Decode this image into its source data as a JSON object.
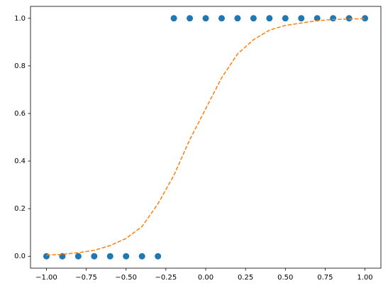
{
  "chart_data": {
    "type": "scatter",
    "x": [
      -1.0,
      -0.9,
      -0.8,
      -0.7,
      -0.6,
      -0.5,
      -0.4,
      -0.3,
      -0.2,
      -0.1,
      0.0,
      0.1,
      0.2,
      0.3,
      0.4,
      0.5,
      0.6,
      0.7,
      0.8,
      0.9,
      1.0
    ],
    "series": [
      {
        "type": "scatter",
        "color": "#1f77b4",
        "values": [
          0,
          0,
          0,
          0,
          0,
          0,
          0,
          0,
          1,
          1,
          1,
          1,
          1,
          1,
          1,
          1,
          1,
          1,
          1,
          1,
          1
        ]
      },
      {
        "type": "line",
        "dashed": true,
        "color": "#ff7f0e",
        "values": [
          0.005,
          0.008,
          0.015,
          0.025,
          0.045,
          0.075,
          0.125,
          0.22,
          0.34,
          0.49,
          0.62,
          0.75,
          0.85,
          0.91,
          0.95,
          0.97,
          0.98,
          0.99,
          0.995,
          0.997,
          0.998
        ]
      }
    ],
    "xlim": [
      -1.1,
      1.1
    ],
    "ylim": [
      -0.05,
      1.05
    ],
    "xticks": [
      {
        "value": -1.0,
        "label": "−1.00"
      },
      {
        "value": -0.75,
        "label": "−0.75"
      },
      {
        "value": -0.5,
        "label": "−0.50"
      },
      {
        "value": -0.25,
        "label": "−0.25"
      },
      {
        "value": 0,
        "label": "0.00"
      },
      {
        "value": 0.25,
        "label": "0.25"
      },
      {
        "value": 0.5,
        "label": "0.50"
      },
      {
        "value": 0.75,
        "label": "0.75"
      },
      {
        "value": 1.0,
        "label": "1.00"
      }
    ],
    "yticks": [
      {
        "value": 0,
        "label": "0.0"
      },
      {
        "value": 0.2,
        "label": "0.2"
      },
      {
        "value": 0.4,
        "label": "0.4"
      },
      {
        "value": 0.6,
        "label": "0.6"
      },
      {
        "value": 0.8,
        "label": "0.8"
      },
      {
        "value": 1.0,
        "label": "1.0"
      }
    ],
    "grid": false
  }
}
